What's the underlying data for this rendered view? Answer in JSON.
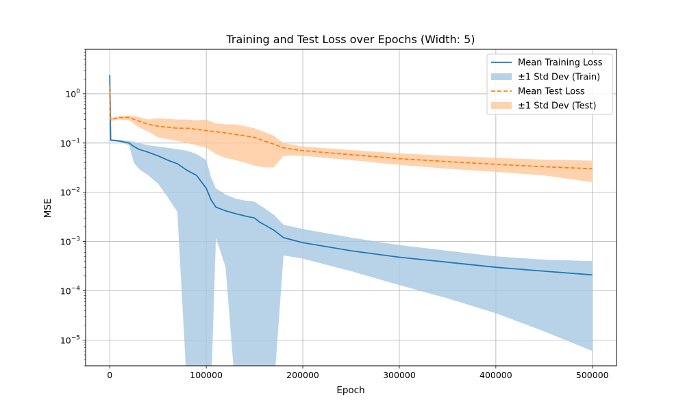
{
  "chart_data": {
    "type": "line",
    "title": "Training and Test Loss over Epochs (Width: 5)",
    "xlabel": "Epoch",
    "ylabel": "MSE",
    "xlim": [
      -25000,
      525000
    ],
    "ylim": [
      3e-06,
      8
    ],
    "yscale": "log",
    "grid": true,
    "legend_position": "top-right",
    "x_ticks": [
      {
        "value": 0,
        "label": "0"
      },
      {
        "value": 100000,
        "label": "100000"
      },
      {
        "value": 200000,
        "label": "200000"
      },
      {
        "value": 300000,
        "label": "300000"
      },
      {
        "value": 400000,
        "label": "400000"
      },
      {
        "value": 500000,
        "label": "500000"
      }
    ],
    "y_ticks": [
      {
        "value": 1e-05,
        "base": "10",
        "exp": "−5"
      },
      {
        "value": 0.0001,
        "base": "10",
        "exp": "−4"
      },
      {
        "value": 0.001,
        "base": "10",
        "exp": "−3"
      },
      {
        "value": 0.01,
        "base": "10",
        "exp": "−2"
      },
      {
        "value": 0.1,
        "base": "10",
        "exp": "−1"
      },
      {
        "value": 1,
        "base": "10",
        "exp": "0"
      }
    ],
    "colors": {
      "train": "#1f77b4",
      "train_band": "#a6c8e2",
      "test": "#ff7f0e",
      "test_band": "#ffc89a"
    },
    "legend": [
      {
        "label": "Mean Training Loss",
        "kind": "line",
        "series": "train"
      },
      {
        "label": "±1 Std Dev (Train)",
        "kind": "band",
        "series": "train_band"
      },
      {
        "label": "Mean Test Loss",
        "kind": "dashed",
        "series": "test"
      },
      {
        "label": "±1 Std Dev (Test)",
        "kind": "band",
        "series": "test_band"
      }
    ],
    "series": [
      {
        "name": "Mean Training Loss",
        "key": "train",
        "x": [
          0,
          1000,
          10000,
          20000,
          25000,
          30000,
          40000,
          50000,
          60000,
          70000,
          80000,
          90000,
          100000,
          105000,
          110000,
          120000,
          130000,
          140000,
          150000,
          155000,
          160000,
          170000,
          180000,
          200000,
          250000,
          300000,
          350000,
          400000,
          450000,
          500000
        ],
        "y": [
          2.4,
          0.115,
          0.11,
          0.1,
          0.085,
          0.075,
          0.065,
          0.055,
          0.045,
          0.038,
          0.028,
          0.022,
          0.012,
          0.007,
          0.005,
          0.0042,
          0.0037,
          0.0033,
          0.003,
          0.0025,
          0.0022,
          0.0017,
          0.0012,
          0.00095,
          0.00065,
          0.00048,
          0.00038,
          0.0003,
          0.00025,
          0.00021
        ]
      },
      {
        "name": "±1 Std Dev (Train)",
        "key": "train_band",
        "x": [
          0,
          1000,
          10000,
          20000,
          25000,
          30000,
          40000,
          50000,
          60000,
          70000,
          80000,
          90000,
          100000,
          105000,
          110000,
          120000,
          130000,
          140000,
          150000,
          155000,
          160000,
          170000,
          180000,
          200000,
          250000,
          300000,
          350000,
          400000,
          450000,
          500000
        ],
        "upper": [
          2.6,
          0.12,
          0.115,
          0.11,
          0.105,
          0.1,
          0.09,
          0.085,
          0.08,
          0.075,
          0.07,
          0.06,
          0.045,
          0.02,
          0.012,
          0.009,
          0.0075,
          0.0068,
          0.0065,
          0.0055,
          0.0048,
          0.0035,
          0.0022,
          0.0018,
          0.0012,
          0.00085,
          0.00065,
          0.0005,
          0.00043,
          0.0004
        ],
        "lower": [
          2.2,
          0.11,
          0.105,
          0.09,
          0.04,
          0.03,
          0.022,
          0.015,
          0.008,
          0.004,
          1e-06,
          1e-06,
          1e-06,
          1e-06,
          0.0012,
          0.0003,
          1e-06,
          1e-06,
          1e-06,
          1e-06,
          1e-06,
          1e-06,
          0.00052,
          0.00045,
          0.00025,
          0.00013,
          7e-05,
          3.5e-05,
          1.5e-05,
          6e-06
        ]
      },
      {
        "name": "Mean Test Loss",
        "key": "test",
        "x": [
          0,
          1000,
          10000,
          20000,
          30000,
          40000,
          50000,
          60000,
          70000,
          80000,
          90000,
          100000,
          110000,
          120000,
          130000,
          140000,
          150000,
          160000,
          170000,
          180000,
          200000,
          250000,
          300000,
          350000,
          400000,
          450000,
          500000
        ],
        "y": [
          1.5,
          0.3,
          0.33,
          0.33,
          0.28,
          0.24,
          0.22,
          0.21,
          0.2,
          0.2,
          0.19,
          0.18,
          0.17,
          0.16,
          0.15,
          0.14,
          0.13,
          0.11,
          0.095,
          0.08,
          0.07,
          0.058,
          0.048,
          0.042,
          0.037,
          0.033,
          0.03
        ]
      },
      {
        "name": "±1 Std Dev (Test)",
        "key": "test_band",
        "x": [
          0,
          1000,
          10000,
          20000,
          30000,
          40000,
          50000,
          60000,
          70000,
          80000,
          90000,
          100000,
          110000,
          120000,
          130000,
          140000,
          150000,
          160000,
          170000,
          180000,
          200000,
          250000,
          300000,
          350000,
          400000,
          450000,
          500000
        ],
        "upper": [
          1.7,
          0.32,
          0.35,
          0.36,
          0.34,
          0.3,
          0.32,
          0.31,
          0.3,
          0.3,
          0.29,
          0.3,
          0.25,
          0.24,
          0.24,
          0.22,
          0.2,
          0.17,
          0.14,
          0.1,
          0.085,
          0.072,
          0.062,
          0.055,
          0.05,
          0.046,
          0.044
        ],
        "lower": [
          1.3,
          0.28,
          0.3,
          0.29,
          0.21,
          0.17,
          0.13,
          0.12,
          0.11,
          0.1,
          0.09,
          0.08,
          0.06,
          0.05,
          0.045,
          0.04,
          0.035,
          0.032,
          0.032,
          0.055,
          0.055,
          0.045,
          0.036,
          0.03,
          0.026,
          0.022,
          0.016
        ]
      }
    ]
  }
}
